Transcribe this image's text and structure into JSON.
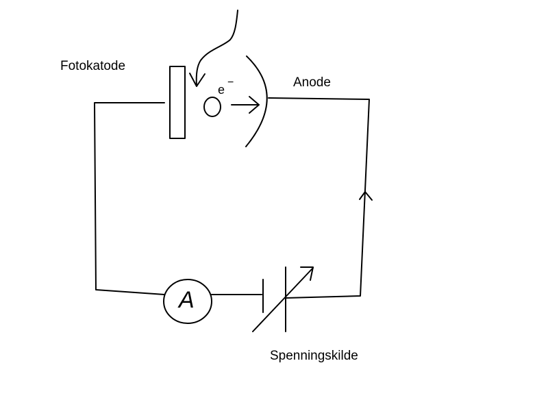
{
  "labels": {
    "photocathode": "Fotokatode",
    "anode": "Anode",
    "voltage_source": "Spenningskilde"
  },
  "symbols": {
    "ammeter": "A",
    "electron": "e",
    "electron_charge": "−"
  },
  "colors": {
    "ink": "#000000",
    "background": "#ffffff"
  }
}
